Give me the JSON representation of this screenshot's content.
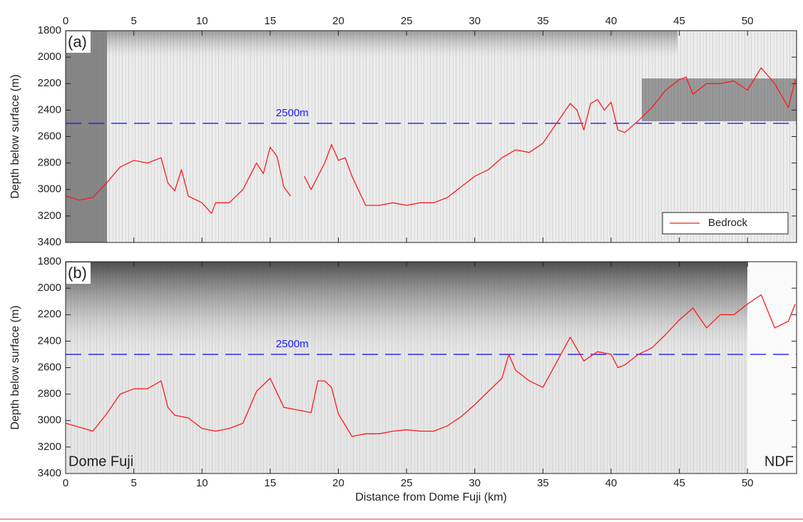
{
  "chart_data": [
    {
      "type": "line",
      "panel_label": "(a)",
      "y_label": "Depth below surface (m)",
      "xlim": [
        0,
        53.6
      ],
      "xticks": [
        0,
        5,
        10,
        15,
        20,
        25,
        30,
        35,
        40,
        45,
        50
      ],
      "xtick_labels_side": "top",
      "ylim": [
        1800,
        3400
      ],
      "yticks": [
        1800,
        2000,
        2200,
        2400,
        2600,
        2800,
        3000,
        3200,
        3400
      ],
      "y_reversed": true,
      "reference_line": {
        "value": 2500,
        "label": "2500m",
        "color": "#1a1aff"
      },
      "legend": "lower right",
      "x": [
        0,
        1,
        2,
        3,
        4,
        5,
        6,
        7,
        7.5,
        8,
        8.5,
        9,
        10,
        10.7,
        11,
        12,
        13,
        14,
        14.5,
        15,
        15.5,
        16,
        16.5,
        17,
        17.5,
        18,
        19,
        19.5,
        20,
        20.5,
        21,
        22,
        23,
        24,
        25,
        26,
        27,
        28,
        29,
        30,
        31,
        32,
        33,
        34,
        35,
        36,
        37,
        37.5,
        38,
        38.5,
        39,
        39.5,
        40,
        40.5,
        41,
        42,
        43,
        44,
        45,
        45.5,
        46,
        47,
        48,
        49,
        50,
        51,
        52,
        53,
        53.5
      ],
      "series": [
        {
          "name": "Bedrock",
          "color": "#ff1a1a",
          "values": [
            3050,
            3080,
            3060,
            2950,
            2830,
            2780,
            2800,
            2760,
            2950,
            3010,
            2850,
            3050,
            3100,
            3180,
            3100,
            3100,
            3000,
            2800,
            2880,
            2680,
            2750,
            2980,
            3050,
            null,
            2900,
            3000,
            2800,
            2660,
            2780,
            2760,
            2900,
            3120,
            3120,
            3100,
            3120,
            3100,
            3100,
            3060,
            2980,
            2900,
            2850,
            2760,
            2700,
            2720,
            2650,
            2500,
            2350,
            2400,
            2550,
            2350,
            2320,
            2400,
            2340,
            2550,
            2570,
            2480,
            2380,
            2250,
            2170,
            2150,
            2280,
            2200,
            2200,
            2180,
            2250,
            2080,
            2200,
            2380,
            2170
          ]
        }
      ]
    },
    {
      "type": "line",
      "panel_label": "(b)",
      "y_label": "Depth below surface (m)",
      "x_label": "Distance from Dome Fuji (km)",
      "xlim": [
        0,
        53.6
      ],
      "xticks": [
        0,
        5,
        10,
        15,
        20,
        25,
        30,
        35,
        40,
        45,
        50
      ],
      "xtick_labels_side": "bottom",
      "ylim": [
        1800,
        3400
      ],
      "yticks": [
        1800,
        2000,
        2200,
        2400,
        2600,
        2800,
        3000,
        3200,
        3400
      ],
      "y_reversed": true,
      "reference_line": {
        "value": 2500,
        "label": "2500m",
        "color": "#1a1aff"
      },
      "annotations": [
        {
          "text": "Dome Fuji",
          "position": "lower left"
        },
        {
          "text": "NDF",
          "position": "lower right"
        }
      ],
      "x": [
        0,
        1,
        2,
        3,
        4,
        5,
        6,
        7,
        7.5,
        8,
        9,
        10,
        11,
        12,
        13,
        14,
        15,
        16,
        17,
        18,
        18.5,
        19,
        19.5,
        20,
        21,
        22,
        23,
        24,
        25,
        26,
        27,
        28,
        29,
        30,
        31,
        32,
        32.5,
        33,
        34,
        35,
        36,
        37,
        38,
        39,
        40,
        40.5,
        41,
        42,
        43,
        44,
        45,
        46,
        47,
        48,
        49,
        50,
        51,
        52,
        53,
        53.5
      ],
      "series": [
        {
          "color": "#ff1a1a",
          "values": [
            3020,
            3050,
            3080,
            2950,
            2800,
            2760,
            2760,
            2700,
            2900,
            2960,
            2980,
            3060,
            3080,
            3060,
            3020,
            2780,
            2680,
            2900,
            2920,
            2940,
            2700,
            2700,
            2750,
            2950,
            3120,
            3100,
            3100,
            3080,
            3070,
            3080,
            3080,
            3040,
            2970,
            2880,
            2780,
            2680,
            2500,
            2620,
            2700,
            2750,
            2560,
            2370,
            2550,
            2480,
            2500,
            2600,
            2580,
            2500,
            2450,
            2350,
            2240,
            2150,
            2300,
            2200,
            2200,
            2120,
            2050,
            2300,
            2250,
            2120
          ]
        }
      ]
    }
  ]
}
